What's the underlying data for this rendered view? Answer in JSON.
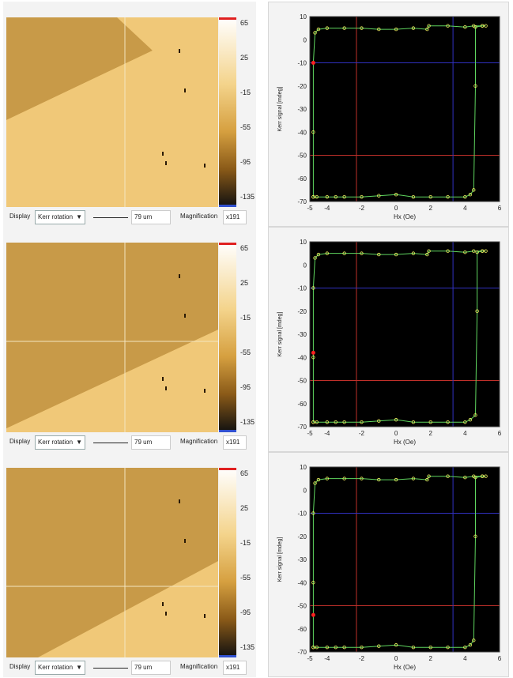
{
  "panels": [
    {
      "id": 1,
      "colorbar": {
        "ticks": [
          "65",
          "25",
          "-15",
          "-55",
          "-95",
          "-135"
        ]
      },
      "toolbar": {
        "display_label": "Display",
        "display_value": "Kerr rotation",
        "scale_value": "79 um",
        "magnification_label": "Magnification",
        "magnification_value": "x191"
      },
      "marker_y": -10,
      "chart_data": {
        "type": "line",
        "xlabel": "Hx (Oe)",
        "ylabel": "Kerr signal [mdeg]",
        "xlim": [
          -5,
          6
        ],
        "ylim": [
          -70,
          10
        ],
        "xticks": [
          "-5",
          "-4",
          "-2",
          "0",
          "2",
          "4",
          "6"
        ],
        "yticks": [
          "10",
          "0",
          "-10",
          "-20",
          "-30",
          "-40",
          "-50",
          "-60",
          "-70"
        ],
        "crosshair_red": {
          "x": -2.3,
          "y": -50
        },
        "crosshair_blue": {
          "x": 3.3,
          "y": -10
        },
        "series": [
          {
            "values": [
              [
                -4.8,
                -68
              ],
              [
                -4.8,
                -40
              ],
              [
                -4.8,
                -10
              ],
              [
                -4.7,
                3
              ],
              [
                -4.5,
                4.5
              ],
              [
                -4,
                5
              ],
              [
                -3,
                5
              ],
              [
                -2,
                5
              ],
              [
                -1,
                4.5
              ],
              [
                0,
                4.5
              ],
              [
                1,
                5
              ],
              [
                1.8,
                4.5
              ],
              [
                1.9,
                6
              ],
              [
                3,
                6
              ],
              [
                4,
                5.5
              ],
              [
                4.5,
                6
              ],
              [
                5,
                6
              ],
              [
                5.2,
                6
              ]
            ]
          },
          {
            "values": [
              [
                5,
                6
              ],
              [
                4.6,
                5.5
              ],
              [
                4.6,
                -20
              ],
              [
                4.5,
                -65
              ],
              [
                4.3,
                -67
              ],
              [
                4,
                -68
              ],
              [
                3,
                -68
              ],
              [
                2,
                -68
              ],
              [
                1,
                -68
              ],
              [
                0,
                -67
              ],
              [
                -1,
                -67.5
              ],
              [
                -2,
                -68
              ],
              [
                -3,
                -68
              ],
              [
                -3.5,
                -68
              ],
              [
                -4,
                -68
              ],
              [
                -4.6,
                -68
              ],
              [
                -4.8,
                -68
              ]
            ]
          }
        ]
      }
    },
    {
      "id": 2,
      "colorbar": {
        "ticks": [
          "65",
          "25",
          "-15",
          "-55",
          "-95",
          "-135"
        ]
      },
      "toolbar": {
        "display_label": "Display",
        "display_value": "Kerr rotation",
        "scale_value": "79 um",
        "magnification_label": "Magnification",
        "magnification_value": "x191"
      },
      "marker_y": -38,
      "chart_data": {
        "type": "line",
        "xlabel": "Hx (Oe)",
        "ylabel": "Kerr signal [mdeg]",
        "xlim": [
          -5,
          6
        ],
        "ylim": [
          -70,
          10
        ],
        "xticks": [
          "-5",
          "-4",
          "-2",
          "0",
          "2",
          "4",
          "6"
        ],
        "yticks": [
          "10",
          "0",
          "-10",
          "-20",
          "-30",
          "-40",
          "-50",
          "-60",
          "-70"
        ],
        "crosshair_red": {
          "x": -2.3,
          "y": -50
        },
        "crosshair_blue": {
          "x": 3.3,
          "y": -10
        },
        "series": [
          {
            "values": [
              [
                -4.8,
                -68
              ],
              [
                -4.8,
                -40
              ],
              [
                -4.8,
                -10
              ],
              [
                -4.7,
                3
              ],
              [
                -4.5,
                4.5
              ],
              [
                -4,
                5
              ],
              [
                -3,
                5
              ],
              [
                -2,
                5
              ],
              [
                -1,
                4.5
              ],
              [
                0,
                4.5
              ],
              [
                1,
                5
              ],
              [
                1.8,
                4.5
              ],
              [
                1.9,
                6
              ],
              [
                3,
                6
              ],
              [
                4,
                5.5
              ],
              [
                4.5,
                6
              ],
              [
                5,
                6
              ],
              [
                5.2,
                6
              ]
            ]
          },
          {
            "values": [
              [
                5,
                6
              ],
              [
                4.7,
                5.5
              ],
              [
                4.7,
                -20
              ],
              [
                4.6,
                -65
              ],
              [
                4.3,
                -67
              ],
              [
                4,
                -68
              ],
              [
                3,
                -68
              ],
              [
                2,
                -68
              ],
              [
                1,
                -68
              ],
              [
                0,
                -67
              ],
              [
                -1,
                -67.5
              ],
              [
                -2,
                -68
              ],
              [
                -3,
                -68
              ],
              [
                -3.5,
                -68
              ],
              [
                -4,
                -68
              ],
              [
                -4.6,
                -68
              ],
              [
                -4.8,
                -68
              ]
            ]
          }
        ]
      }
    },
    {
      "id": 3,
      "colorbar": {
        "ticks": [
          "65",
          "25",
          "-15",
          "-55",
          "-95",
          "-135"
        ]
      },
      "toolbar": {
        "display_label": "Display",
        "display_value": "Kerr rotation",
        "scale_value": "79 um",
        "magnification_label": "Magnification",
        "magnification_value": "x191"
      },
      "marker_y": -54,
      "chart_data": {
        "type": "line",
        "xlabel": "Hx (Oe)",
        "ylabel": "Kerr signal [mdeg]",
        "xlim": [
          -5,
          6
        ],
        "ylim": [
          -70,
          10
        ],
        "xticks": [
          "-5",
          "-4",
          "-2",
          "0",
          "2",
          "4",
          "6"
        ],
        "yticks": [
          "10",
          "0",
          "-10",
          "-20",
          "-30",
          "-40",
          "-50",
          "-60",
          "-70"
        ],
        "crosshair_red": {
          "x": -2.3,
          "y": -50
        },
        "crosshair_blue": {
          "x": 3.3,
          "y": -10
        },
        "series": [
          {
            "values": [
              [
                -4.8,
                -68
              ],
              [
                -4.8,
                -40
              ],
              [
                -4.8,
                -10
              ],
              [
                -4.7,
                3
              ],
              [
                -4.5,
                4.5
              ],
              [
                -4,
                5
              ],
              [
                -3,
                5
              ],
              [
                -2,
                5
              ],
              [
                -1,
                4.5
              ],
              [
                0,
                4.5
              ],
              [
                1,
                5
              ],
              [
                1.8,
                4.5
              ],
              [
                1.9,
                6
              ],
              [
                3,
                6
              ],
              [
                4,
                5.5
              ],
              [
                4.5,
                6
              ],
              [
                5,
                6
              ],
              [
                5.2,
                6
              ]
            ]
          },
          {
            "values": [
              [
                5,
                6
              ],
              [
                4.6,
                5.5
              ],
              [
                4.6,
                -20
              ],
              [
                4.5,
                -65
              ],
              [
                4.3,
                -67
              ],
              [
                4,
                -68
              ],
              [
                3,
                -68
              ],
              [
                2,
                -68
              ],
              [
                1,
                -68
              ],
              [
                0,
                -67
              ],
              [
                -1,
                -67.5
              ],
              [
                -2,
                -68
              ],
              [
                -3,
                -68
              ],
              [
                -3.5,
                -68
              ],
              [
                -4,
                -68
              ],
              [
                -4.6,
                -68
              ],
              [
                -4.8,
                -68
              ]
            ]
          }
        ]
      }
    }
  ],
  "colors": {
    "map_light": "#f0c878",
    "map_dark": "#c89a48",
    "chart_bg": "#000000",
    "loop_line": "#5fd65f",
    "loop_marker": "#f0f060",
    "crosshair_red": "#c0302a",
    "crosshair_blue": "#3030c0",
    "marker_red": "#ff2020"
  }
}
